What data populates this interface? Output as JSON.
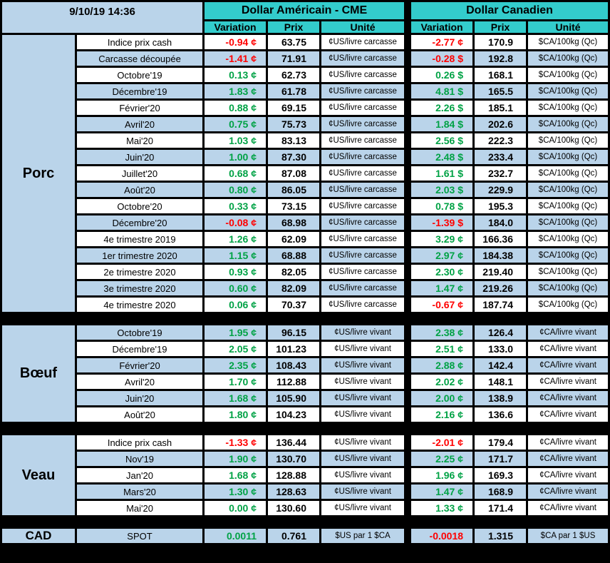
{
  "header": {
    "timestamp": "9/10/19 14:36",
    "usd_title": "Dollar Américain - CME",
    "cad_title": "Dollar Canadien",
    "col_variation": "Variation",
    "col_prix": "Prix",
    "col_unite": "Unité"
  },
  "colors": {
    "header_cyan": "#33CCCC",
    "light_blue": "#BAD4EA",
    "positive_green": "#00A245",
    "negative_red": "#FF0000",
    "grid_black": "#000000",
    "row_white": "#FFFFFF"
  },
  "sections": [
    {
      "id": "porc",
      "name": "Porc",
      "first_shade": "white",
      "usd_unit": "¢US/livre carcasse",
      "cad_unit": "$CA/100kg (Qc)",
      "rows": [
        {
          "label": "Indice prix cash",
          "usd_var": "-0.94 ¢",
          "usd_trend": "neg",
          "usd_prix": "63.75",
          "cad_var": "-2.77 ¢",
          "cad_trend": "neg",
          "cad_prix": "170.9"
        },
        {
          "label": "Carcasse découpée",
          "usd_var": "-1.41 ¢",
          "usd_trend": "neg",
          "usd_prix": "71.91",
          "cad_var": "-0.28 $",
          "cad_trend": "neg",
          "cad_prix": "192.8"
        },
        {
          "label": "Octobre'19",
          "usd_var": "0.13 ¢",
          "usd_trend": "pos",
          "usd_prix": "62.73",
          "cad_var": "0.26 $",
          "cad_trend": "pos",
          "cad_prix": "168.1"
        },
        {
          "label": "Décembre'19",
          "usd_var": "1.83 ¢",
          "usd_trend": "pos",
          "usd_prix": "61.78",
          "cad_var": "4.81 $",
          "cad_trend": "pos",
          "cad_prix": "165.5"
        },
        {
          "label": "Février'20",
          "usd_var": "0.88 ¢",
          "usd_trend": "pos",
          "usd_prix": "69.15",
          "cad_var": "2.26 $",
          "cad_trend": "pos",
          "cad_prix": "185.1"
        },
        {
          "label": "Avril'20",
          "usd_var": "0.75 ¢",
          "usd_trend": "pos",
          "usd_prix": "75.73",
          "cad_var": "1.84 $",
          "cad_trend": "pos",
          "cad_prix": "202.6"
        },
        {
          "label": "Mai'20",
          "usd_var": "1.03 ¢",
          "usd_trend": "pos",
          "usd_prix": "83.13",
          "cad_var": "2.56 $",
          "cad_trend": "pos",
          "cad_prix": "222.3"
        },
        {
          "label": "Juin'20",
          "usd_var": "1.00 ¢",
          "usd_trend": "pos",
          "usd_prix": "87.30",
          "cad_var": "2.48 $",
          "cad_trend": "pos",
          "cad_prix": "233.4"
        },
        {
          "label": "Juillet'20",
          "usd_var": "0.68 ¢",
          "usd_trend": "pos",
          "usd_prix": "87.08",
          "cad_var": "1.61 $",
          "cad_trend": "pos",
          "cad_prix": "232.7"
        },
        {
          "label": "Août'20",
          "usd_var": "0.80 ¢",
          "usd_trend": "pos",
          "usd_prix": "86.05",
          "cad_var": "2.03 $",
          "cad_trend": "pos",
          "cad_prix": "229.9"
        },
        {
          "label": "Octobre'20",
          "usd_var": "0.33 ¢",
          "usd_trend": "pos",
          "usd_prix": "73.15",
          "cad_var": "0.78 $",
          "cad_trend": "pos",
          "cad_prix": "195.3"
        },
        {
          "label": "Décembre'20",
          "usd_var": "-0.08 ¢",
          "usd_trend": "neg",
          "usd_prix": "68.98",
          "cad_var": "-1.39 $",
          "cad_trend": "neg",
          "cad_prix": "184.0"
        },
        {
          "label": "4e trimestre 2019",
          "usd_var": "1.26 ¢",
          "usd_trend": "pos",
          "usd_prix": "62.09",
          "cad_var": "3.29 ¢",
          "cad_trend": "pos",
          "cad_prix": "166.36"
        },
        {
          "label": "1er trimestre 2020",
          "usd_var": "1.15 ¢",
          "usd_trend": "pos",
          "usd_prix": "68.88",
          "cad_var": "2.97 ¢",
          "cad_trend": "pos",
          "cad_prix": "184.38"
        },
        {
          "label": "2e trimestre 2020",
          "usd_var": "0.93 ¢",
          "usd_trend": "pos",
          "usd_prix": "82.05",
          "cad_var": "2.30 ¢",
          "cad_trend": "pos",
          "cad_prix": "219.40"
        },
        {
          "label": "3e trimestre 2020",
          "usd_var": "0.60 ¢",
          "usd_trend": "pos",
          "usd_prix": "82.09",
          "cad_var": "1.47 ¢",
          "cad_trend": "pos",
          "cad_prix": "219.26"
        },
        {
          "label": "4e trimestre 2020",
          "usd_var": "0.06 ¢",
          "usd_trend": "pos",
          "usd_prix": "70.37",
          "cad_var": "-0.67 ¢",
          "cad_trend": "neg",
          "cad_prix": "187.74"
        }
      ]
    },
    {
      "id": "boeuf",
      "name": "Bœuf",
      "first_shade": "blue",
      "usd_unit": "¢US/livre vivant",
      "cad_unit": "¢CA/livre vivant",
      "rows": [
        {
          "label": "Octobre'19",
          "usd_var": "1.95 ¢",
          "usd_trend": "pos",
          "usd_prix": "96.15",
          "cad_var": "2.38 ¢",
          "cad_trend": "pos",
          "cad_prix": "126.4"
        },
        {
          "label": "Décembre'19",
          "usd_var": "2.05 ¢",
          "usd_trend": "pos",
          "usd_prix": "101.23",
          "cad_var": "2.51 ¢",
          "cad_trend": "pos",
          "cad_prix": "133.0"
        },
        {
          "label": "Février'20",
          "usd_var": "2.35 ¢",
          "usd_trend": "pos",
          "usd_prix": "108.43",
          "cad_var": "2.88 ¢",
          "cad_trend": "pos",
          "cad_prix": "142.4"
        },
        {
          "label": "Avril'20",
          "usd_var": "1.70 ¢",
          "usd_trend": "pos",
          "usd_prix": "112.88",
          "cad_var": "2.02 ¢",
          "cad_trend": "pos",
          "cad_prix": "148.1"
        },
        {
          "label": "Juin'20",
          "usd_var": "1.68 ¢",
          "usd_trend": "pos",
          "usd_prix": "105.90",
          "cad_var": "2.00 ¢",
          "cad_trend": "pos",
          "cad_prix": "138.9"
        },
        {
          "label": "Août'20",
          "usd_var": "1.80 ¢",
          "usd_trend": "pos",
          "usd_prix": "104.23",
          "cad_var": "2.16 ¢",
          "cad_trend": "pos",
          "cad_prix": "136.6"
        }
      ]
    },
    {
      "id": "veau",
      "name": "Veau",
      "first_shade": "white",
      "usd_unit": "¢US/livre vivant",
      "cad_unit": "¢CA/livre vivant",
      "rows": [
        {
          "label": "Indice prix cash",
          "usd_var": "-1.33 ¢",
          "usd_trend": "neg",
          "usd_prix": "136.44",
          "cad_var": "-2.01 ¢",
          "cad_trend": "neg",
          "cad_prix": "179.4"
        },
        {
          "label": "Nov'19",
          "usd_var": "1.90 ¢",
          "usd_trend": "pos",
          "usd_prix": "130.70",
          "cad_var": "2.25 ¢",
          "cad_trend": "pos",
          "cad_prix": "171.7"
        },
        {
          "label": "Jan'20",
          "usd_var": "1.68 ¢",
          "usd_trend": "pos",
          "usd_prix": "128.88",
          "cad_var": "1.96 ¢",
          "cad_trend": "pos",
          "cad_prix": "169.3"
        },
        {
          "label": "Mars'20",
          "usd_var": "1.30 ¢",
          "usd_trend": "pos",
          "usd_prix": "128.63",
          "cad_var": "1.47 ¢",
          "cad_trend": "pos",
          "cad_prix": "168.9"
        },
        {
          "label": "Mai'20",
          "usd_var": "0.00 ¢",
          "usd_trend": "pos",
          "usd_prix": "130.60",
          "cad_var": "1.33 ¢",
          "cad_trend": "pos",
          "cad_prix": "171.4"
        }
      ]
    },
    {
      "id": "cad",
      "name": "CAD",
      "first_shade": "blue",
      "usd_unit": "$US par 1 $CA",
      "cad_unit": "$CA par 1 $US",
      "rows": [
        {
          "label": "SPOT",
          "usd_var": "0.0011",
          "usd_trend": "pos",
          "usd_prix": "0.761",
          "cad_var": "-0.0018",
          "cad_trend": "neg",
          "cad_prix": "1.315"
        }
      ]
    }
  ]
}
